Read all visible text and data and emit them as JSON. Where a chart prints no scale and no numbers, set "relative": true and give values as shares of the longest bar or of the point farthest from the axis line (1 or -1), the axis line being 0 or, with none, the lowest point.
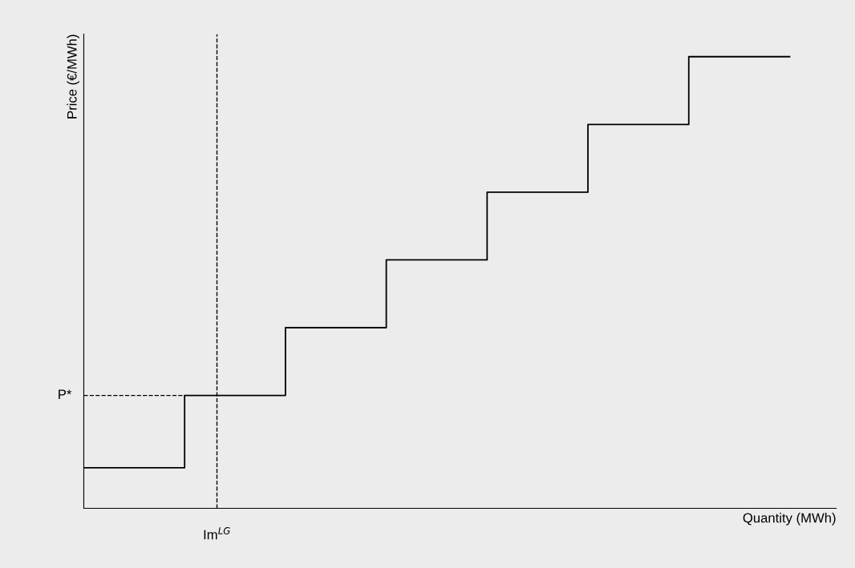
{
  "chart_data": {
    "type": "step",
    "relative": true,
    "xlabel": "Quantity (MWh)",
    "ylabel": "Price (€/MWh)",
    "categories": [
      null,
      null,
      null,
      null,
      null,
      null,
      null,
      null
    ],
    "series": [
      {
        "color": "#000000",
        "values": [
          0.09,
          0.25,
          0.4,
          0.55,
          0.7,
          0.85,
          1,
          1
        ]
      }
    ],
    "ref_lines": [
      {
        "axis": "y",
        "value": 0.25,
        "label": "P*",
        "line_style": "dashed",
        "color": "#000000"
      }
    ],
    "annotations": [
      "Im$^{LG}$"
    ],
    "tick_labels": false
  }
}
